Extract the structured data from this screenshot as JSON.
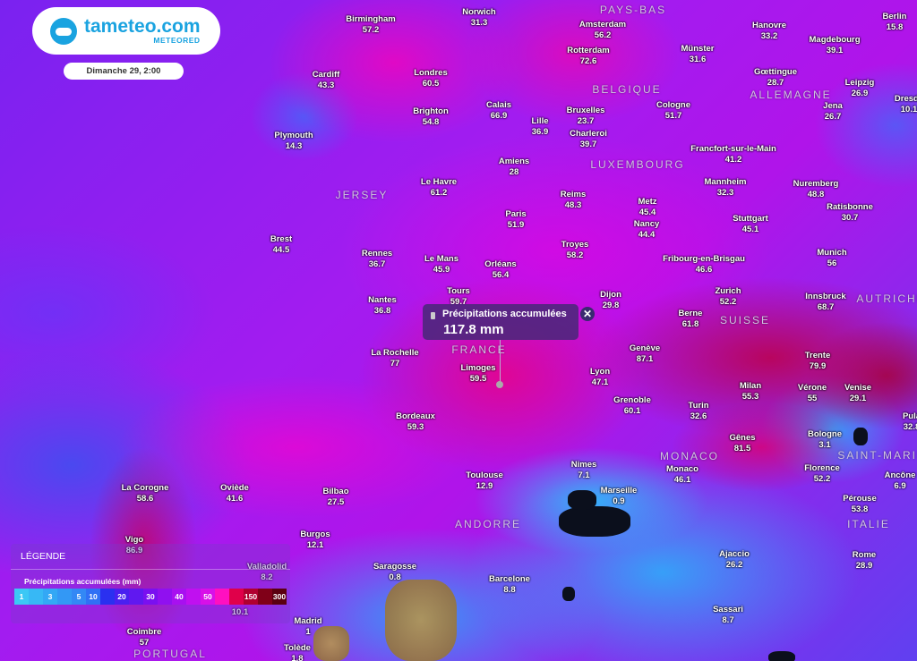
{
  "brand": {
    "name": "tameteo.com",
    "sub": "METEORED",
    "accent": "#1aa3e0"
  },
  "date_label": "Dimanche 29, 2:00",
  "tooltip": {
    "title": "Précipitations accumulées",
    "value": "117.8 mm",
    "close_icon": "close-icon",
    "layer_icon": "gauge-icon"
  },
  "legend": {
    "title": "LÉGENDE",
    "subtitle": "Précipitations accumulées (mm)",
    "scale": [
      {
        "label": "1",
        "color": "#3cc8f5"
      },
      {
        "label": "",
        "color": "#37b8f5"
      },
      {
        "label": "3",
        "color": "#33a8f5"
      },
      {
        "label": "",
        "color": "#3398f5"
      },
      {
        "label": "5",
        "color": "#3388f5"
      },
      {
        "label": "10",
        "color": "#3070f5"
      },
      {
        "label": "",
        "color": "#2a30f0"
      },
      {
        "label": "20",
        "color": "#4a20f0"
      },
      {
        "label": "",
        "color": "#6018f0"
      },
      {
        "label": "30",
        "color": "#7a10f0"
      },
      {
        "label": "",
        "color": "#9010f0"
      },
      {
        "label": "40",
        "color": "#a810f0"
      },
      {
        "label": "",
        "color": "#c010f0"
      },
      {
        "label": "50",
        "color": "#d810e8"
      },
      {
        "label": "",
        "color": "#ff10c0"
      },
      {
        "label": "",
        "color": "#e0004a"
      },
      {
        "label": "150",
        "color": "#b00030"
      },
      {
        "label": "",
        "color": "#800018"
      },
      {
        "label": "300",
        "color": "#5a0010"
      }
    ]
  },
  "cities": [
    {
      "name": "Birmingham",
      "value": "57.2"
    },
    {
      "name": "Norwich",
      "value": "31.3"
    },
    {
      "name": "Amsterdam",
      "value": "56.2"
    },
    {
      "name": "Berlin",
      "value": "15.8"
    },
    {
      "name": "Hanovre",
      "value": "33.2"
    },
    {
      "name": "Magdebourg",
      "value": "39.1"
    },
    {
      "name": "Cardiff",
      "value": "43.3"
    },
    {
      "name": "Londres",
      "value": "60.5"
    },
    {
      "name": "Rotterdam",
      "value": "72.6"
    },
    {
      "name": "Münster",
      "value": "31.6"
    },
    {
      "name": "Gœttingue",
      "value": "28.7"
    },
    {
      "name": "Leipzig",
      "value": "26.9"
    },
    {
      "name": "Dresde",
      "value": "10.1"
    },
    {
      "name": "Plymouth",
      "value": "14.3"
    },
    {
      "name": "Brighton",
      "value": "54.8"
    },
    {
      "name": "Calais",
      "value": "66.9"
    },
    {
      "name": "Lille",
      "value": "36.9"
    },
    {
      "name": "Bruxelles",
      "value": "23.7"
    },
    {
      "name": "Charleroi",
      "value": "39.7"
    },
    {
      "name": "Cologne",
      "value": "51.7"
    },
    {
      "name": "Jena",
      "value": "26.7"
    },
    {
      "name": "Amiens",
      "value": "28"
    },
    {
      "name": "Le Havre",
      "value": "61.2"
    },
    {
      "name": "Francfort-sur-le-Main",
      "value": "41.2"
    },
    {
      "name": "Mannheim",
      "value": "32.3"
    },
    {
      "name": "Nuremberg",
      "value": "48.8"
    },
    {
      "name": "Ratisbonne",
      "value": "30.7"
    },
    {
      "name": "Reims",
      "value": "48.3"
    },
    {
      "name": "Metz",
      "value": "45.4"
    },
    {
      "name": "Paris",
      "value": "51.9"
    },
    {
      "name": "Nancy",
      "value": "44.4"
    },
    {
      "name": "Stuttgart",
      "value": "45.1"
    },
    {
      "name": "Brest",
      "value": "44.5"
    },
    {
      "name": "Rennes",
      "value": "36.7"
    },
    {
      "name": "Le Mans",
      "value": "45.9"
    },
    {
      "name": "Orléans",
      "value": "56.4"
    },
    {
      "name": "Troyes",
      "value": "58.2"
    },
    {
      "name": "Munich",
      "value": "56"
    },
    {
      "name": "Fribourg-en-Brisgau",
      "value": "46.6"
    },
    {
      "name": "Tours",
      "value": "59.7"
    },
    {
      "name": "Nantes",
      "value": "36.8"
    },
    {
      "name": "Dijon",
      "value": "29.8"
    },
    {
      "name": "Zurich",
      "value": "52.2"
    },
    {
      "name": "Innsbruck",
      "value": "68.7"
    },
    {
      "name": "Berne",
      "value": "61.8"
    },
    {
      "name": "La Rochelle",
      "value": "77"
    },
    {
      "name": "Limoges",
      "value": "59.5"
    },
    {
      "name": "Lyon",
      "value": "47.1"
    },
    {
      "name": "Genève",
      "value": "87.1"
    },
    {
      "name": "Trente",
      "value": "79.9"
    },
    {
      "name": "Grenoble",
      "value": "60.1"
    },
    {
      "name": "Milan",
      "value": "55.3"
    },
    {
      "name": "Vérone",
      "value": "55"
    },
    {
      "name": "Venise",
      "value": "29.1"
    },
    {
      "name": "Turin",
      "value": "32.6"
    },
    {
      "name": "Pula",
      "value": "32.8"
    },
    {
      "name": "Bordeaux",
      "value": "59.3"
    },
    {
      "name": "Bologne",
      "value": "3.1"
    },
    {
      "name": "Gênes",
      "value": "81.5"
    },
    {
      "name": "Toulouse",
      "value": "12.9"
    },
    {
      "name": "Nimes",
      "value": "7.1"
    },
    {
      "name": "Marseille",
      "value": "0.9"
    },
    {
      "name": "Monaco",
      "value": "46.1"
    },
    {
      "name": "Florence",
      "value": "52.2"
    },
    {
      "name": "Ancône",
      "value": "6.9"
    },
    {
      "name": "La Corogne",
      "value": "58.6"
    },
    {
      "name": "Oviède",
      "value": "41.6"
    },
    {
      "name": "Bilbao",
      "value": "27.5"
    },
    {
      "name": "Pérouse",
      "value": "53.8"
    },
    {
      "name": "Burgos",
      "value": "12.1"
    },
    {
      "name": "Vigo",
      "value": "86.9"
    },
    {
      "name": "Valladolid",
      "value": "8.2"
    },
    {
      "name": "Saragosse",
      "value": "0.8"
    },
    {
      "name": "Barcelone",
      "value": "8.8"
    },
    {
      "name": "Ajaccio",
      "value": "26.2"
    },
    {
      "name": "Rome",
      "value": "28.9"
    },
    {
      "name": "Sassari",
      "value": "8.7"
    },
    {
      "name": "Madrid",
      "value": "1"
    },
    {
      "name": "Tolède",
      "value": "1.8"
    },
    {
      "name": "Coimbre",
      "value": "57"
    },
    {
      "name": "",
      "value": "10.1"
    }
  ],
  "countries": [
    "PAYS-BAS",
    "ALLEMAGNE",
    "BELGIQUE",
    "LUXEMBOURG",
    "JERSEY",
    "FRANCE",
    "SUISSE",
    "AUTRICHE",
    "SAINT-MARIN",
    "MONACO",
    "ITALIE",
    "ANDORRE",
    "PORTUGAL"
  ]
}
